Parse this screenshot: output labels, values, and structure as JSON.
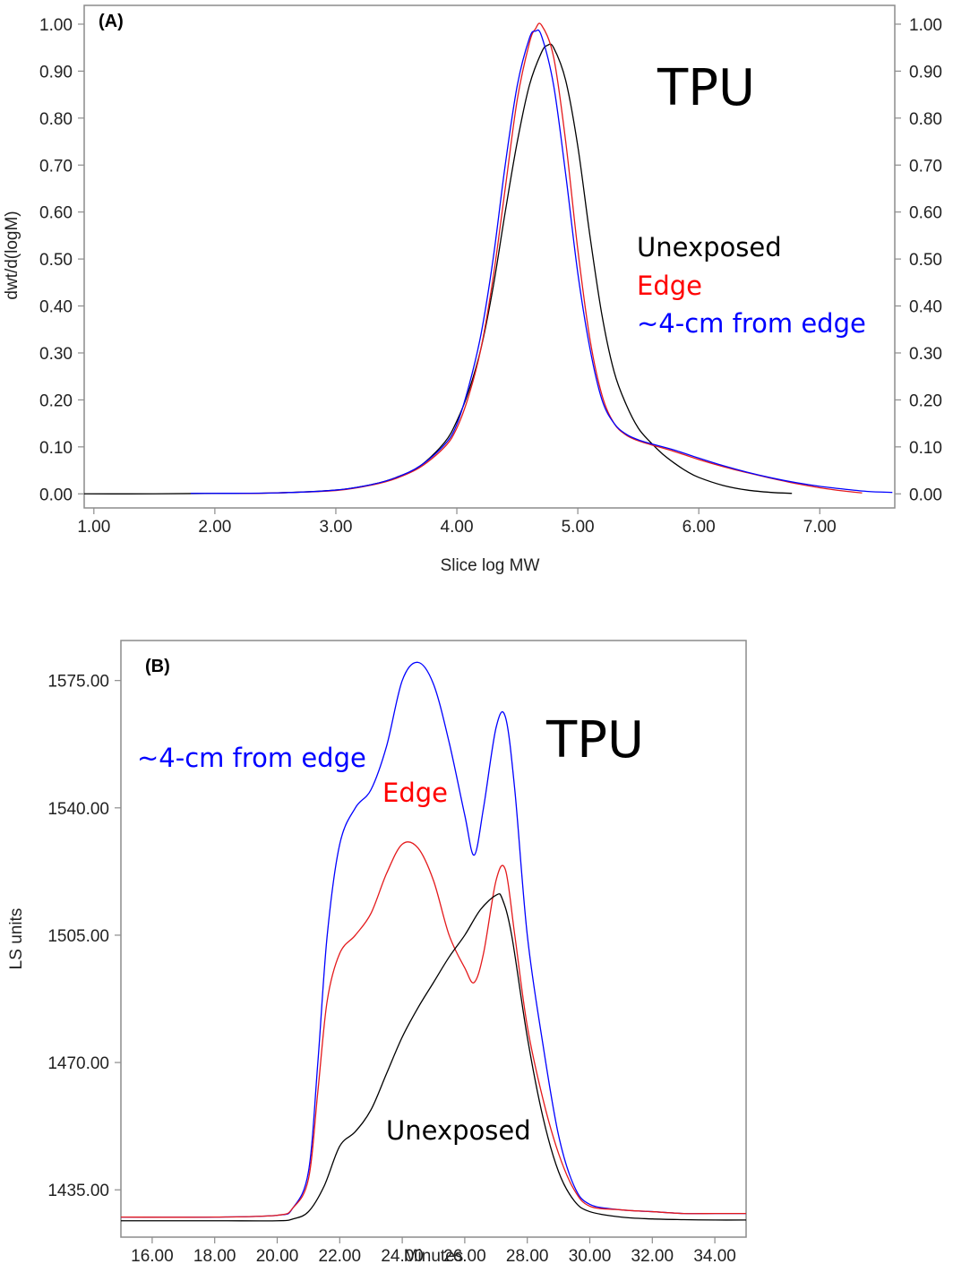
{
  "chart_data": [
    {
      "type": "line",
      "panel_label": "(A)",
      "title": "TPU",
      "xlabel": "Slice log MW",
      "ylabel": "dwt/d(logM)",
      "xlim": [
        0.92,
        7.62
      ],
      "ylim": [
        -0.03,
        1.04
      ],
      "x_ticks": [
        1.0,
        2.0,
        3.0,
        4.0,
        5.0,
        6.0,
        7.0
      ],
      "x_tick_labels": [
        "1.00",
        "2.00",
        "3.00",
        "4.00",
        "5.00",
        "6.00",
        "7.00"
      ],
      "y_ticks": [
        0.0,
        0.1,
        0.2,
        0.3,
        0.4,
        0.5,
        0.6,
        0.7,
        0.8,
        0.9,
        1.0
      ],
      "y_tick_labels": [
        "0.00",
        "0.10",
        "0.20",
        "0.30",
        "0.40",
        "0.50",
        "0.60",
        "0.70",
        "0.80",
        "0.90",
        "1.00"
      ],
      "right_axis_ticks": true,
      "grid": false,
      "legend": [
        "Unexposed",
        "Edge",
        "~4-cm from edge"
      ],
      "series": [
        {
          "name": "Unexposed",
          "color": "#000000",
          "x": [
            0.92,
            1.5,
            2.0,
            2.5,
            3.0,
            3.3,
            3.5,
            3.7,
            3.9,
            4.0,
            4.1,
            4.2,
            4.3,
            4.4,
            4.5,
            4.6,
            4.7,
            4.75,
            4.8,
            4.9,
            5.0,
            5.1,
            5.2,
            5.3,
            5.4,
            5.5,
            5.6,
            5.7,
            5.8,
            5.9,
            6.0,
            6.2,
            6.4,
            6.6,
            6.77
          ],
          "y": [
            0.0,
            0.0,
            0.001,
            0.002,
            0.008,
            0.02,
            0.035,
            0.06,
            0.11,
            0.155,
            0.22,
            0.31,
            0.44,
            0.6,
            0.75,
            0.87,
            0.94,
            0.955,
            0.95,
            0.88,
            0.74,
            0.55,
            0.38,
            0.26,
            0.19,
            0.14,
            0.11,
            0.085,
            0.065,
            0.048,
            0.035,
            0.018,
            0.008,
            0.003,
            0.001
          ]
        },
        {
          "name": "Edge",
          "color": "#e41a1c",
          "x": [
            2.2,
            2.5,
            3.0,
            3.3,
            3.5,
            3.7,
            3.9,
            4.0,
            4.1,
            4.2,
            4.3,
            4.4,
            4.5,
            4.6,
            4.65,
            4.7,
            4.8,
            4.9,
            5.0,
            5.1,
            5.2,
            5.3,
            5.4,
            5.5,
            5.6,
            5.8,
            6.0,
            6.2,
            6.4,
            6.6,
            6.8,
            7.0,
            7.2,
            7.35
          ],
          "y": [
            0.001,
            0.002,
            0.007,
            0.019,
            0.033,
            0.057,
            0.1,
            0.14,
            0.21,
            0.31,
            0.46,
            0.65,
            0.84,
            0.96,
            0.99,
            0.998,
            0.93,
            0.75,
            0.52,
            0.33,
            0.21,
            0.15,
            0.125,
            0.113,
            0.105,
            0.09,
            0.073,
            0.058,
            0.045,
            0.033,
            0.022,
            0.013,
            0.006,
            0.002
          ]
        },
        {
          "name": "~4-cm from edge",
          "color": "#0000ff",
          "x": [
            1.8,
            2.5,
            3.0,
            3.3,
            3.5,
            3.7,
            3.9,
            4.0,
            4.1,
            4.2,
            4.3,
            4.4,
            4.5,
            4.6,
            4.65,
            4.7,
            4.8,
            4.9,
            5.0,
            5.1,
            5.2,
            5.3,
            5.4,
            5.5,
            5.6,
            5.8,
            6.0,
            6.2,
            6.4,
            6.6,
            6.8,
            7.0,
            7.2,
            7.4,
            7.6
          ],
          "y": [
            0.001,
            0.002,
            0.008,
            0.02,
            0.035,
            0.06,
            0.105,
            0.148,
            0.23,
            0.34,
            0.5,
            0.7,
            0.87,
            0.97,
            0.985,
            0.975,
            0.87,
            0.68,
            0.47,
            0.31,
            0.2,
            0.15,
            0.127,
            0.115,
            0.107,
            0.093,
            0.076,
            0.06,
            0.046,
            0.034,
            0.024,
            0.016,
            0.01,
            0.005,
            0.003
          ]
        }
      ]
    },
    {
      "type": "line",
      "panel_label": "(B)",
      "title": "TPU",
      "xlabel": "Minutes",
      "ylabel": "LS units",
      "xlim": [
        15.0,
        35.0
      ],
      "ylim": [
        1422.0,
        1586.0
      ],
      "x_ticks": [
        16,
        18,
        20,
        22,
        24,
        26,
        28,
        30,
        32,
        34
      ],
      "x_tick_labels": [
        "16.00",
        "18.00",
        "20.00",
        "22.00",
        "24.00",
        "26.00",
        "28.00",
        "30.00",
        "32.00",
        "34.00"
      ],
      "y_ticks": [
        1435,
        1470,
        1505,
        1540,
        1575
      ],
      "y_tick_labels": [
        "1435.00",
        "1470.00",
        "1505.00",
        "1540.00",
        "1575.00"
      ],
      "grid": false,
      "legend": [
        "~4-cm from edge",
        "Edge",
        "Unexposed"
      ],
      "series": [
        {
          "name": "~4-cm from edge",
          "color": "#0000ff",
          "x": [
            15,
            18,
            20,
            20.5,
            21.0,
            21.3,
            21.6,
            22.0,
            22.5,
            23.0,
            23.5,
            24.0,
            24.5,
            25.0,
            25.5,
            26.0,
            26.3,
            26.6,
            27.0,
            27.3,
            27.6,
            28.0,
            28.5,
            29.0,
            29.5,
            30.0,
            31.0,
            32.0,
            33.0,
            34.0,
            35.0
          ],
          "y": [
            1427.5,
            1427.5,
            1428.0,
            1430.0,
            1440.0,
            1470.0,
            1505.0,
            1530.0,
            1540.0,
            1545.0,
            1557.0,
            1575.0,
            1580.0,
            1574.0,
            1558.0,
            1538.0,
            1527.0,
            1540.0,
            1562.0,
            1565.0,
            1545.0,
            1505.0,
            1475.0,
            1450.0,
            1436.0,
            1431.0,
            1429.5,
            1429.0,
            1428.5,
            1428.5,
            1428.5
          ]
        },
        {
          "name": "Edge",
          "color": "#e41a1c",
          "x": [
            15,
            18,
            20,
            20.5,
            21.0,
            21.3,
            21.6,
            22.0,
            22.5,
            23.0,
            23.5,
            24.0,
            24.5,
            25.0,
            25.5,
            26.0,
            26.3,
            26.6,
            27.0,
            27.3,
            27.6,
            28.0,
            28.5,
            29.0,
            29.5,
            30.0,
            31.0,
            32.0,
            33.0,
            34.0,
            35.0
          ],
          "y": [
            1427.5,
            1427.5,
            1428.0,
            1430.0,
            1438.0,
            1462.0,
            1487.0,
            1500.0,
            1505.0,
            1511.0,
            1522.0,
            1530.0,
            1529.0,
            1520.0,
            1505.0,
            1496.0,
            1492.0,
            1500.0,
            1520.0,
            1523.0,
            1505.0,
            1480.0,
            1460.0,
            1445.0,
            1435.0,
            1430.5,
            1429.5,
            1429.0,
            1428.5,
            1428.5,
            1428.5
          ]
        },
        {
          "name": "Unexposed",
          "color": "#000000",
          "x": [
            15,
            18,
            20,
            20.5,
            21.0,
            21.5,
            22.0,
            22.5,
            23.0,
            23.5,
            24.0,
            24.5,
            25.0,
            25.5,
            26.0,
            26.5,
            27.0,
            27.2,
            27.5,
            28.0,
            28.5,
            29.0,
            29.5,
            30.0,
            31.0,
            32.0,
            33.0,
            34.0,
            35.0
          ],
          "y": [
            1426.5,
            1426.5,
            1426.5,
            1427.0,
            1429.0,
            1436.0,
            1447.0,
            1451.0,
            1457.0,
            1467.0,
            1477.0,
            1485.0,
            1492.0,
            1499.0,
            1505.0,
            1512.0,
            1516.0,
            1515.0,
            1505.0,
            1477.0,
            1455.0,
            1440.0,
            1432.0,
            1429.0,
            1427.5,
            1427.0,
            1426.8,
            1426.7,
            1426.7
          ]
        }
      ]
    }
  ]
}
